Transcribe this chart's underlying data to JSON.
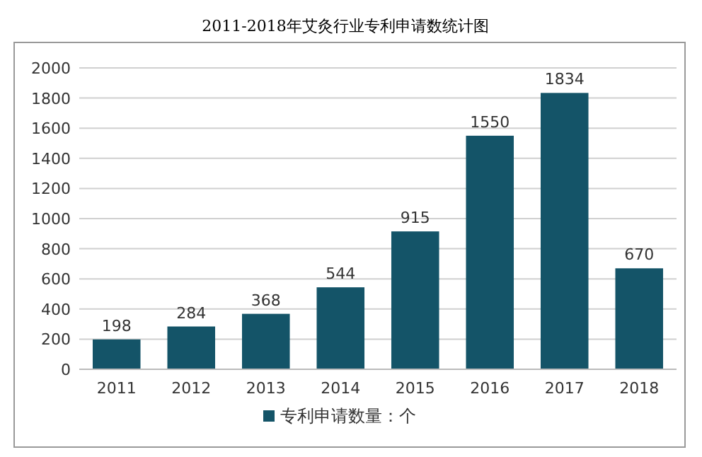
{
  "chart_data": {
    "type": "bar",
    "title": "2011-2018年艾灸行业专利申请数统计图",
    "categories": [
      "2011",
      "2012",
      "2013",
      "2014",
      "2015",
      "2016",
      "2017",
      "2018"
    ],
    "series": [
      {
        "name": "专利申请数量：个",
        "color": "#145468",
        "values": [
          198,
          284,
          368,
          544,
          915,
          1550,
          1834,
          670
        ]
      }
    ],
    "ylim": [
      0,
      2000
    ],
    "yticks": [
      0,
      200,
      400,
      600,
      800,
      1000,
      1200,
      1400,
      1600,
      1800,
      2000
    ],
    "grid": "y",
    "legend": "bottom",
    "data_labels": true
  }
}
